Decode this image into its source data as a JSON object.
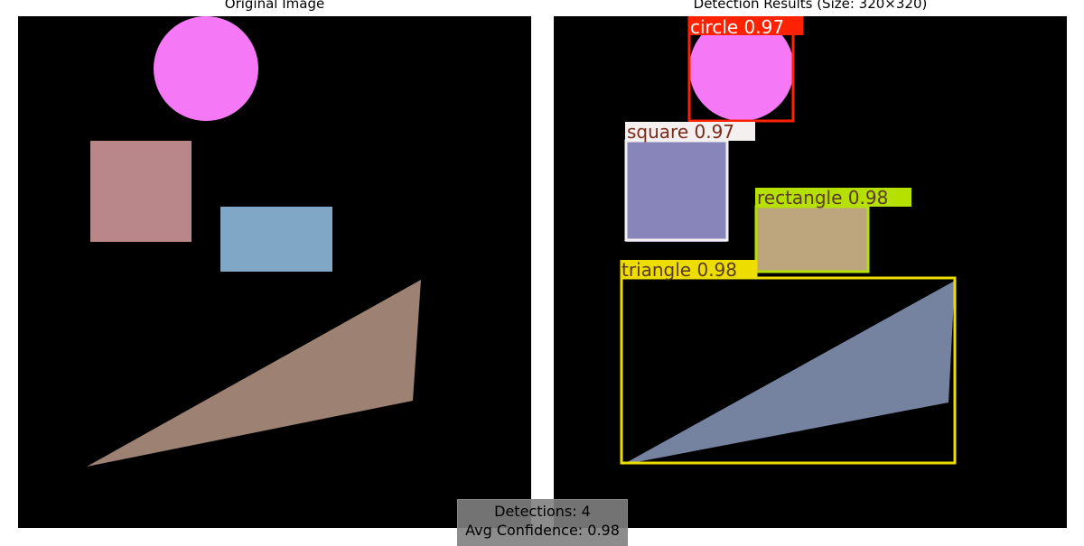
{
  "left_panel": {
    "title": "Original Image",
    "shapes": [
      {
        "name": "circle",
        "color": "#f578f7"
      },
      {
        "name": "square",
        "color": "#b9878a"
      },
      {
        "name": "rectangle",
        "color": "#80a8c6"
      },
      {
        "name": "triangle",
        "color": "#9d8274"
      }
    ]
  },
  "right_panel": {
    "title": "Detection Results (Size: 320×320)",
    "detections": [
      {
        "label": "circle 0.97",
        "class": "circle",
        "confidence": 0.97,
        "box_color": "#ff2200",
        "label_text_color": "#ffffff",
        "shape_color": "#f578f7"
      },
      {
        "label": "square 0.97",
        "class": "square",
        "confidence": 0.97,
        "box_color": "#f5f0f0",
        "label_text_color": "#7a2a1a",
        "shape_color": "#8885bb"
      },
      {
        "label": "rectangle 0.98",
        "class": "rectangle",
        "confidence": 0.98,
        "box_color": "#b6e000",
        "label_text_color": "#5a3a2a",
        "shape_color": "#bda67e"
      },
      {
        "label": "triangle 0.98",
        "class": "triangle",
        "confidence": 0.98,
        "box_color": "#eedd00",
        "label_text_color": "#5a3a2a",
        "shape_color": "#7583a0"
      }
    ]
  },
  "summary": {
    "detections_line": "Detections: 4",
    "avg_confidence_line": "Avg Confidence: 0.98"
  }
}
